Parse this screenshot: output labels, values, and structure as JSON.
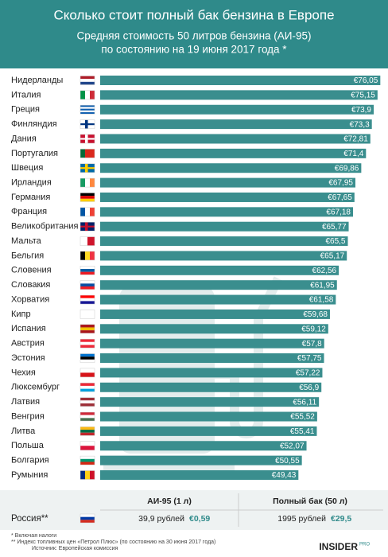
{
  "chart_data": {
    "type": "bar",
    "orientation": "horizontal",
    "title": "Сколько стоит полный бак бензина в Европе",
    "subtitle": [
      "Средняя стоимость 50 литров бензина (АИ-95)",
      "по состоянию на 19 июня 2017 года *"
    ],
    "categories": [
      "Нидерланды",
      "Италия",
      "Греция",
      "Финляндия",
      "Дания",
      "Португалия",
      "Швеция",
      "Ирландия",
      "Германия",
      "Франция",
      "Великобритания",
      "Мальта",
      "Бельгия",
      "Словения",
      "Словакия",
      "Хорватия",
      "Кипр",
      "Испания",
      "Австрия",
      "Эстония",
      "Чехия",
      "Люксембург",
      "Латвия",
      "Венгрия",
      "Литва",
      "Польша",
      "Болгария",
      "Румыния"
    ],
    "values": [
      76.05,
      75.15,
      73.9,
      73.3,
      72.81,
      71.4,
      69.86,
      67.95,
      67.65,
      67.18,
      65.77,
      65.5,
      65.17,
      62.56,
      61.95,
      61.58,
      59.68,
      59.12,
      57.8,
      57.75,
      57.22,
      56.9,
      56.11,
      55.52,
      55.41,
      52.07,
      50.55,
      49.43
    ],
    "value_labels": [
      "€76,05",
      "€75,15",
      "€73,9",
      "€73,3",
      "€72,81",
      "€71,4",
      "€69,86",
      "€67,95",
      "€67,65",
      "€67,18",
      "€65,77",
      "€65,5",
      "€65,17",
      "€62,56",
      "€61,95",
      "€61,58",
      "€59,68",
      "€59,12",
      "€57,8",
      "€57,75",
      "€57,22",
      "€56,9",
      "€56,11",
      "€55,52",
      "€55,41",
      "€52,07",
      "€50,55",
      "€49,43"
    ],
    "color": "#3a8e8e",
    "xlim": [
      -15,
      77
    ]
  },
  "russia": {
    "name": "Россия**",
    "headers": [
      "АИ-95 (1 л)",
      "Полный бак (50 л)"
    ],
    "cells": [
      "39,9 рублей",
      "€0,59",
      "1995 рублей",
      "€29,5"
    ]
  },
  "footnotes": [
    "* Включая налоги",
    "** Индекс топливных цен «Петрол Плюс» (по состоянию на 30 июня 2017 года)",
    "Источник: Европейская комиссия"
  ],
  "logo": {
    "main": "INSIDER",
    "sup": "PRO"
  }
}
